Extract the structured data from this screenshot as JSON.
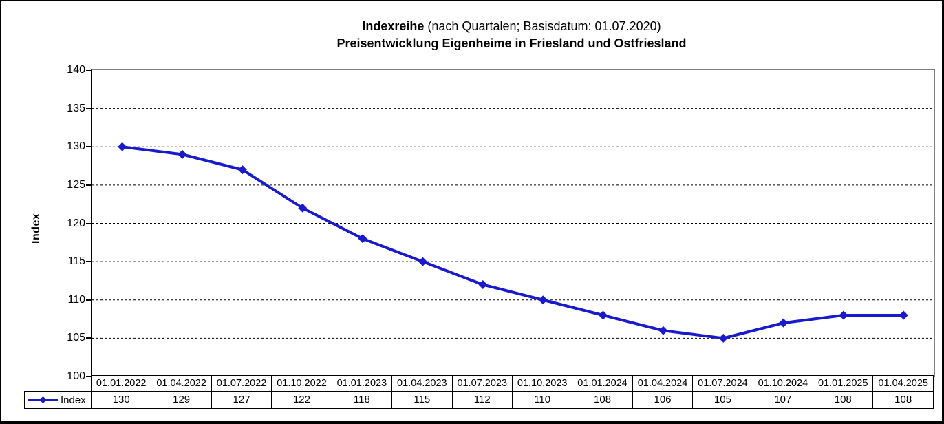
{
  "title": {
    "series_bold": "Indexreihe",
    "subtitle_rest": " (nach Quartalen; Basisdatum: 01.07.2020)",
    "line2": "Preisentwicklung Eigenheime in Friesland und Ostfriesland"
  },
  "y_axis": {
    "label": "Index"
  },
  "legend": {
    "series_label": "Index"
  },
  "chart_data": {
    "type": "line",
    "title": "Indexreihe (nach Quartalen; Basisdatum: 01.07.2020)",
    "subtitle": "Preisentwicklung Eigenheime in Friesland und Ostfriesland",
    "categories": [
      "01.01.2022",
      "01.04.2022",
      "01.07.2022",
      "01.10.2022",
      "01.01.2023",
      "01.04.2023",
      "01.07.2023",
      "01.10.2023",
      "01.01.2024",
      "01.04.2024",
      "01.07.2024",
      "01.10.2024",
      "01.01.2025",
      "01.04.2025"
    ],
    "series": [
      {
        "name": "Index",
        "values": [
          130,
          129,
          127,
          122,
          118,
          115,
          112,
          110,
          108,
          106,
          105,
          107,
          108,
          108
        ]
      }
    ],
    "xlabel": "",
    "ylabel": "Index",
    "ylim": [
      100,
      140
    ],
    "y_tick_step": 5,
    "grid": true,
    "marker": "diamond",
    "line_color": "#1a1acd",
    "grid_color": "#000000",
    "plot_border_color": "#808080",
    "legend_position": "bottom-left-table"
  }
}
